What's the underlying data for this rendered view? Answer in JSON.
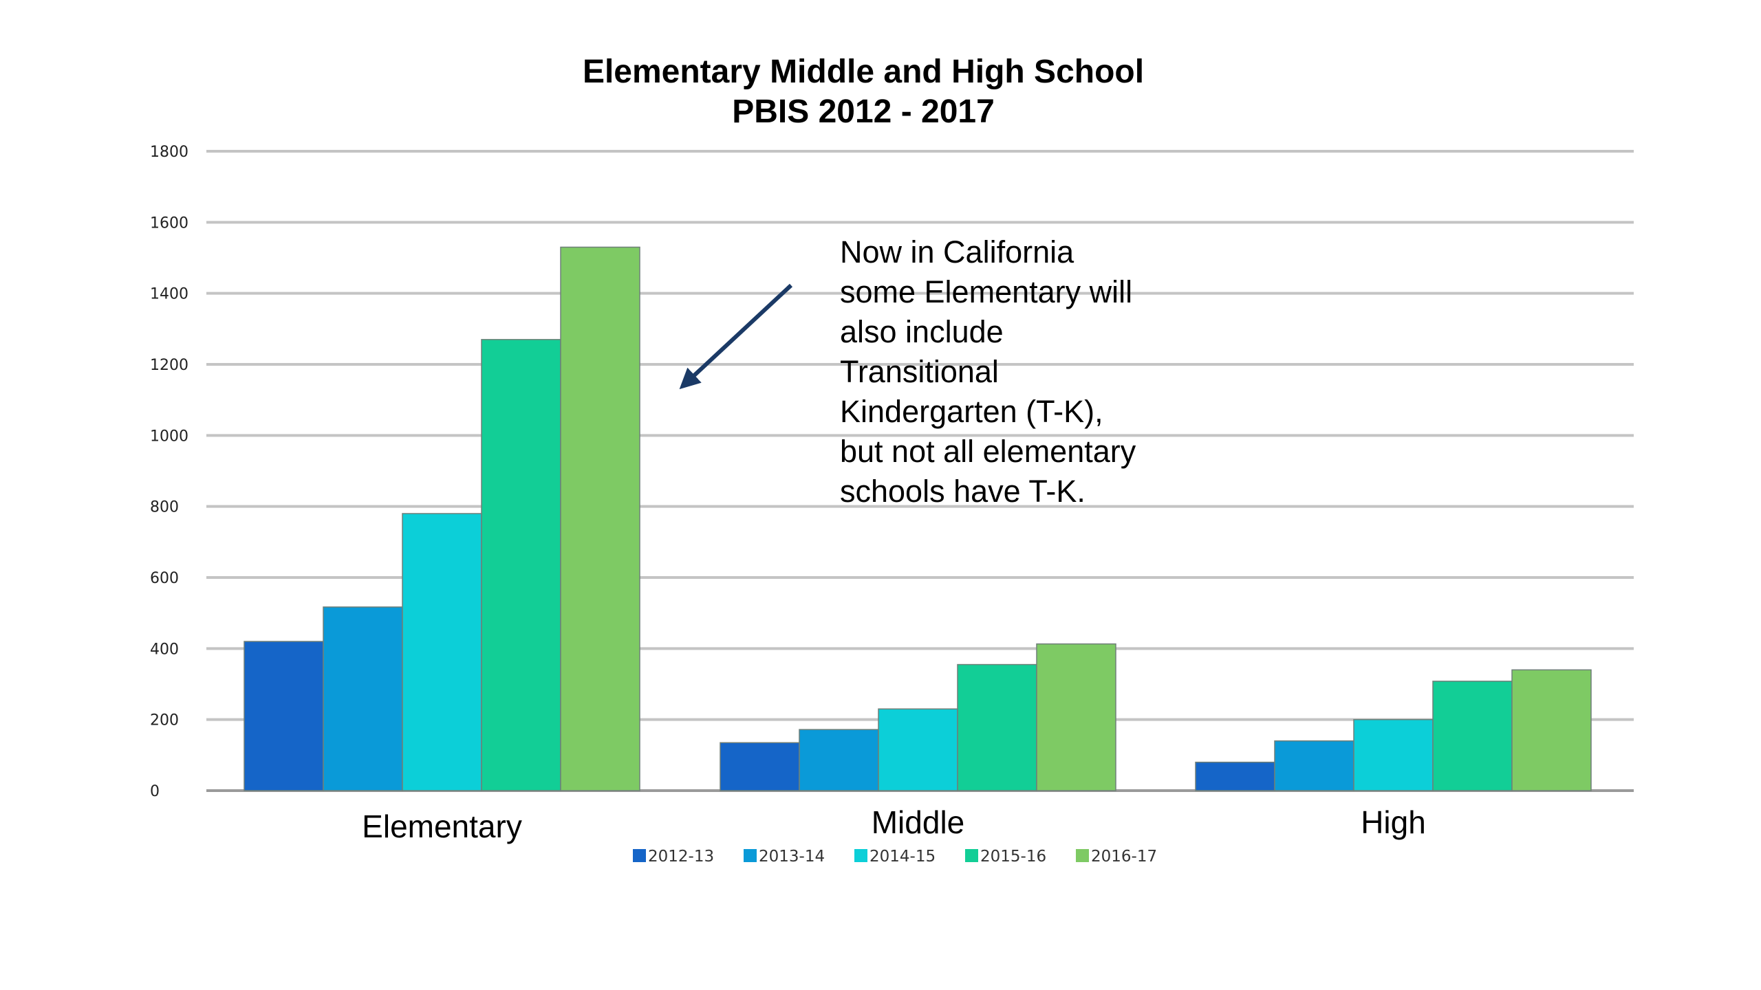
{
  "chart_data": {
    "type": "bar",
    "title": [
      "Elementary Middle and High School",
      "PBIS 2012 - 2017"
    ],
    "categories": [
      "Elementary",
      "Middle",
      "High"
    ],
    "series": [
      {
        "name": "2012-13",
        "color": "#1565C8",
        "values": [
          420,
          135,
          80
        ]
      },
      {
        "name": "2013-14",
        "color": "#0A9AD8",
        "values": [
          517,
          172,
          140
        ]
      },
      {
        "name": "2014-15",
        "color": "#0CCFD8",
        "values": [
          780,
          230,
          200
        ]
      },
      {
        "name": "2015-16",
        "color": "#12CE96",
        "values": [
          1270,
          355,
          308
        ]
      },
      {
        "name": "2016-17",
        "color": "#7ECA64",
        "values": [
          1530,
          413,
          340
        ]
      }
    ],
    "yticks": [
      "0",
      "200",
      "400",
      "600",
      "800",
      "1000",
      "1200",
      "1400",
      "1600",
      "1800"
    ],
    "ylim": [
      0,
      1800
    ],
    "xlabel": "",
    "ylabel": "",
    "grid": true,
    "legend": "bottom",
    "annotation": {
      "lines": [
        "Now in California",
        "some Elementary will",
        "also include",
        "Transitional",
        "Kindergarten (T-K),",
        "but not all elementary",
        "schools have T-K."
      ],
      "arrow_color": "#1B3A66"
    }
  }
}
